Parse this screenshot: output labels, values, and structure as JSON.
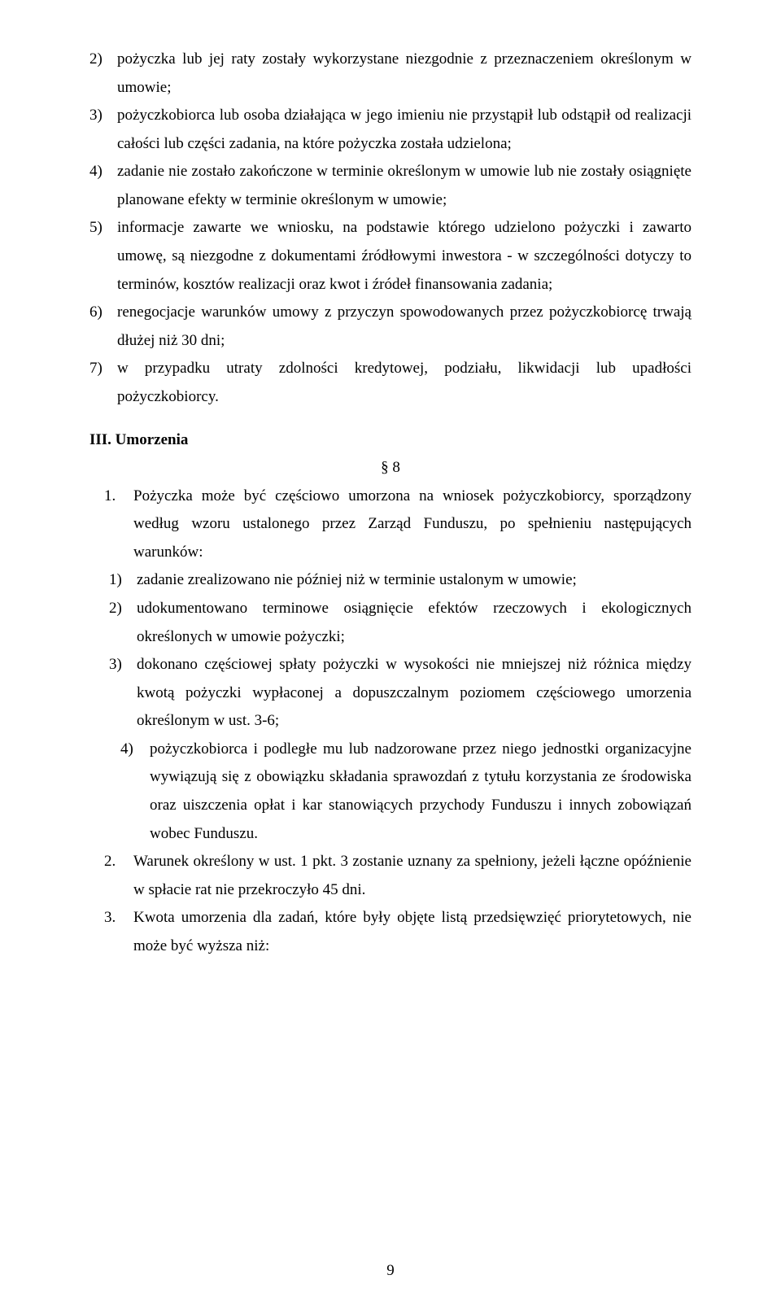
{
  "topList": {
    "items": [
      {
        "num": "2)",
        "text": "pożyczka lub jej raty zostały wykorzystane niezgodnie z przeznaczeniem określonym w umowie;"
      },
      {
        "num": "3)",
        "text": "pożyczkobiorca lub osoba działająca w jego imieniu nie przystąpił lub odstąpił od realizacji całości lub części zadania, na które pożyczka została udzielona;"
      },
      {
        "num": "4)",
        "text": "zadanie nie zostało zakończone w terminie określonym w umowie lub nie zostały osiągnięte planowane efekty w terminie określonym w umowie;"
      },
      {
        "num": "5)",
        "text": "informacje zawarte we wniosku, na podstawie którego udzielono pożyczki i zawarto umowę, są niezgodne z dokumentami źródłowymi inwestora - w szczególności dotyczy to terminów, kosztów realizacji oraz kwot i źródeł finansowania zadania;"
      },
      {
        "num": "6)",
        "text": "renegocjacje warunków umowy z przyczyn spowodowanych przez pożyczkobiorcę trwają dłużej niż 30 dni;"
      },
      {
        "num": "7)",
        "text": "w przypadku utraty zdolności kredytowej, podziału, likwidacji lub upadłości pożyczkobiorcy."
      }
    ]
  },
  "heading": "III. Umorzenia",
  "sectionLabel": "§ 8",
  "point1": {
    "num": "1.",
    "intro": "Pożyczka może być częściowo umorzona na wniosek pożyczkobiorcy, sporządzony według wzoru ustalonego przez Zarząd Funduszu, po spełnieniu następujących warunków:",
    "sub": [
      {
        "num": "1)",
        "text": "zadanie zrealizowano nie później niż w terminie ustalonym w umowie;"
      },
      {
        "num": "2)",
        "text": "udokumentowano terminowe osiągnięcie efektów rzeczowych i ekologicznych określonych w umowie pożyczki;"
      },
      {
        "num": "3)",
        "text": "dokonano częściowej spłaty pożyczki w wysokości nie mniejszej niż różnica między kwotą pożyczki wypłaconej a dopuszczalnym poziomem częściowego umorzenia określonym w ust. 3-6;"
      },
      {
        "num": "4)",
        "text": "pożyczkobiorca i podległe mu lub nadzorowane przez niego jednostki organizacyjne wywiązują się z obowiązku składania sprawozdań z tytułu korzystania ze środowiska oraz uiszczenia opłat i kar stanowiących przychody Funduszu i innych zobowiązań wobec Funduszu."
      }
    ]
  },
  "point2": {
    "num": "2.",
    "text": "Warunek określony w ust. 1 pkt. 3 zostanie uznany za spełniony, jeżeli łączne opóźnienie w spłacie rat nie przekroczyło 45 dni."
  },
  "point3": {
    "num": "3.",
    "text": "Kwota umorzenia dla zadań, które były objęte listą przedsięwzięć priorytetowych, nie może być wyższa niż:"
  },
  "pageNumber": "9"
}
